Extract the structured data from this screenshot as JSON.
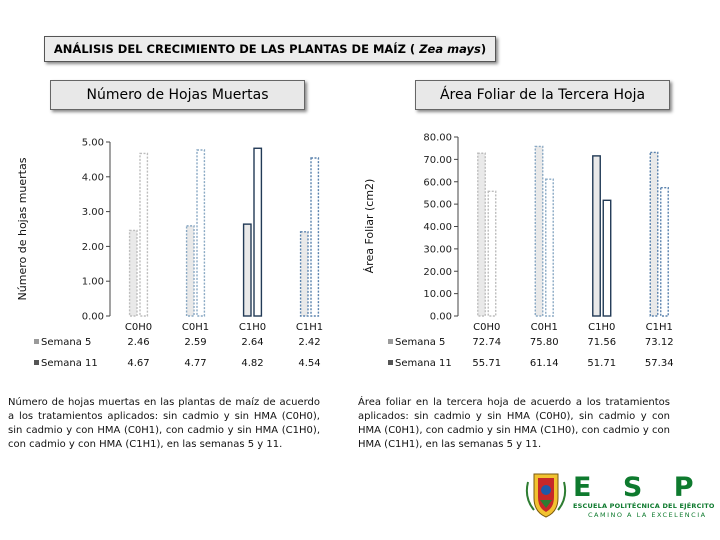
{
  "header": {
    "title_prefix": "ANÁLISIS DEL CRECIMIENTO DE LAS PLANTAS DE MAÍZ (",
    "title_species": "Zea mays",
    "title_suffix": ")"
  },
  "chart_data": [
    {
      "type": "bar",
      "title": "Número de Hojas Muertas",
      "ylabel": "Número de hojas muertas",
      "xlabel": "",
      "ylim": [
        0,
        5
      ],
      "yticks": [
        "0.00",
        "1.00",
        "2.00",
        "3.00",
        "4.00",
        "5.00"
      ],
      "categories": [
        "C0H0",
        "C0H1",
        "C1H0",
        "C1H1"
      ],
      "series": [
        {
          "name": "Semana 5",
          "values": [
            2.46,
            2.59,
            2.64,
            2.42
          ],
          "labels": [
            "2.46",
            "2.59",
            "2.64",
            "2.42"
          ]
        },
        {
          "name": "Semana 11",
          "values": [
            4.67,
            4.77,
            4.82,
            4.54
          ],
          "labels": [
            "4.67",
            "4.77",
            "4.82",
            "4.54"
          ]
        }
      ],
      "grid": false,
      "legend": "data-table"
    },
    {
      "type": "bar",
      "title": "Área Foliar de la Tercera Hoja",
      "ylabel": "Área Foliar (cm2)",
      "xlabel": "",
      "ylim": [
        0,
        80
      ],
      "yticks": [
        "0.00",
        "10.00",
        "20.00",
        "30.00",
        "40.00",
        "50.00",
        "60.00",
        "70.00",
        "80.00"
      ],
      "categories": [
        "C0H0",
        "C0H1",
        "C1H0",
        "C1H1"
      ],
      "series": [
        {
          "name": "Semana 5",
          "values": [
            72.74,
            75.8,
            71.56,
            73.12
          ],
          "labels": [
            "72.74",
            "75.80",
            "71.56",
            "73.12"
          ]
        },
        {
          "name": "Semana 11",
          "values": [
            55.71,
            61.14,
            51.71,
            57.34
          ],
          "labels": [
            "55.71",
            "61.14",
            "51.71",
            "57.34"
          ]
        }
      ],
      "grid": false,
      "legend": "data-table"
    }
  ],
  "captions": {
    "left": "Número de hojas muertas en las plantas de maíz de acuerdo a los tratamientos aplicados: sin cadmio y sin HMA (C0H0), sin cadmio y con HMA (C0H1), con cadmio y sin HMA (C1H0), con cadmio y con HMA (C1H1), en las semanas 5 y 11.",
    "right": "Área foliar en la tercera hoja de acuerdo a los tratamientos aplicados: sin cadmio y sin HMA (C0H0), sin cadmio y con HMA (C0H1), con cadmio y sin HMA (C1H0), con cadmio y con HMA (C1H1), en las semanas 5 y 11."
  },
  "logo": {
    "name": "E S P E",
    "line1": "ESCUELA POLITÉCNICA DEL EJÉRCITO",
    "line2": "CAMINO A LA EXCELENCIA",
    "color": "#0e7a2e"
  },
  "colors": {
    "bar_w5": "#bfbfbf",
    "bar_w11": "#ffffff",
    "stroke_c0h0": "#bdbdbd",
    "stroke_c0h1": "#8aa9c4",
    "stroke_c1h0": "#223a56",
    "stroke_c1h1": "#5b83ae"
  }
}
